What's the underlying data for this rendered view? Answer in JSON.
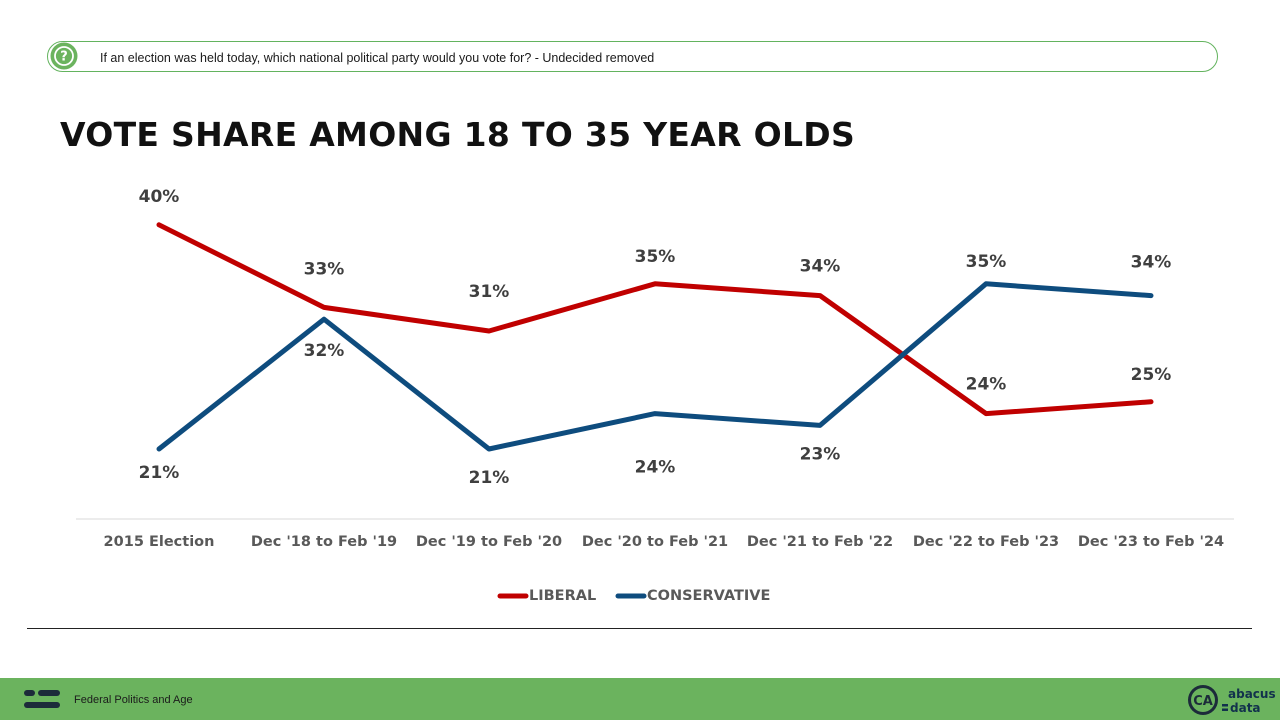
{
  "question": {
    "icon": "question-mark-icon",
    "text": "If an election was held today, which national political party would you vote for? - Undecided removed"
  },
  "headline": "VOTE SHARE AMONG 18 TO 35 YEAR OLDS",
  "chart_data": {
    "type": "line",
    "title": "VOTE SHARE AMONG 18 TO 35 YEAR OLDS",
    "categories": [
      "2015 Election",
      "Dec '18 to Feb '19",
      "Dec '19 to Feb '20",
      "Dec '20 to Feb '21",
      "Dec '21 to Feb '22",
      "Dec '22 to Feb '23",
      "Dec '23 to Feb '24"
    ],
    "series": [
      {
        "name": "LIBERAL",
        "color": "#c00000",
        "values": [
          40,
          33,
          31,
          35,
          34,
          24,
          25
        ]
      },
      {
        "name": "CONSERVATIVE",
        "color": "#0e4c7e",
        "values": [
          21,
          32,
          21,
          24,
          23,
          35,
          34
        ]
      }
    ],
    "data_labels": {
      "LIBERAL": [
        "40%",
        "33%",
        "31%",
        "35%",
        "34%",
        "24%",
        "25%"
      ],
      "CONSERVATIVE": [
        "21%",
        "32%",
        "21%",
        "24%",
        "23%",
        "35%",
        "34%"
      ]
    },
    "xlabel": "",
    "ylabel": "",
    "grid": false,
    "legend": "bottom"
  },
  "footer": {
    "icon": "abacus-mark-icon",
    "text": "Federal Politics and Age",
    "logo_badge": "CA",
    "logo_word_1": "abacus",
    "logo_word_2": "data",
    "accent": "#6bb35e"
  }
}
